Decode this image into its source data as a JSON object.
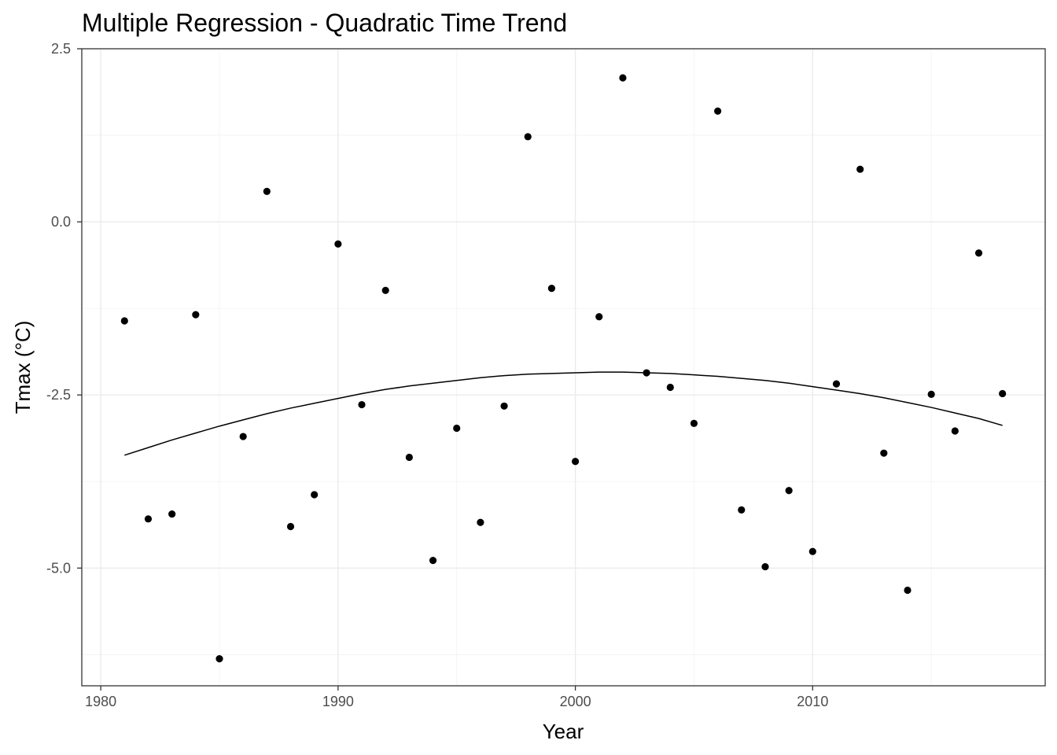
{
  "chart_data": {
    "type": "scatter",
    "title": "Multiple Regression - Quadratic Time Trend",
    "xlabel": "Year",
    "ylabel": "Tmax (°C)",
    "xlim": [
      1979.2,
      2019.8
    ],
    "ylim": [
      -6.7,
      2.5
    ],
    "x_ticks": [
      1980,
      1990,
      2000,
      2010
    ],
    "x_tick_labels": [
      "1980",
      "1990",
      "2000",
      "2010"
    ],
    "y_ticks": [
      2.5,
      0.0,
      -2.5,
      -5.0
    ],
    "y_tick_labels": [
      "2.5",
      "0.0",
      "-2.5",
      "-5.0"
    ],
    "grid": true,
    "legend": "none",
    "colors": {
      "points": "#000000",
      "line": "#000000",
      "grid": "#ebebeb",
      "border": "#333333"
    },
    "points": {
      "x": [
        1981,
        1982,
        1983,
        1984,
        1985,
        1986,
        1987,
        1988,
        1989,
        1990,
        1991,
        1992,
        1993,
        1994,
        1995,
        1996,
        1997,
        1998,
        1999,
        2000,
        2001,
        2002,
        2003,
        2004,
        2005,
        2006,
        2007,
        2008,
        2009,
        2010,
        2011,
        2012,
        2013,
        2014,
        2015,
        2016,
        2017,
        2018
      ],
      "y": [
        -1.43,
        -4.29,
        -4.22,
        -1.34,
        -6.31,
        -3.1,
        0.44,
        -4.4,
        -3.94,
        -0.32,
        -2.64,
        -0.99,
        -3.4,
        -4.89,
        -2.98,
        -4.34,
        -2.66,
        1.23,
        -0.96,
        -3.46,
        -1.37,
        2.08,
        -2.18,
        -2.39,
        -2.91,
        1.6,
        -4.16,
        -4.98,
        -3.88,
        -4.76,
        -2.34,
        0.76,
        -3.34,
        -5.32,
        -2.49,
        -3.02,
        -0.45,
        -2.48
      ]
    },
    "fit": {
      "x": [
        1981,
        1982,
        1983,
        1984,
        1985,
        1986,
        1987,
        1988,
        1989,
        1990,
        1991,
        1992,
        1993,
        1994,
        1995,
        1996,
        1997,
        1998,
        1999,
        2000,
        2001,
        2002,
        2003,
        2004,
        2005,
        2006,
        2007,
        2008,
        2009,
        2010,
        2011,
        2012,
        2013,
        2014,
        2015,
        2016,
        2017,
        2018
      ],
      "y": [
        -3.37,
        -3.26,
        -3.15,
        -3.05,
        -2.95,
        -2.86,
        -2.77,
        -2.69,
        -2.62,
        -2.55,
        -2.48,
        -2.42,
        -2.37,
        -2.33,
        -2.29,
        -2.25,
        -2.22,
        -2.2,
        -2.19,
        -2.18,
        -2.17,
        -2.17,
        -2.18,
        -2.19,
        -2.21,
        -2.23,
        -2.26,
        -2.29,
        -2.33,
        -2.38,
        -2.43,
        -2.48,
        -2.54,
        -2.61,
        -2.68,
        -2.76,
        -2.84,
        -2.94
      ]
    }
  }
}
